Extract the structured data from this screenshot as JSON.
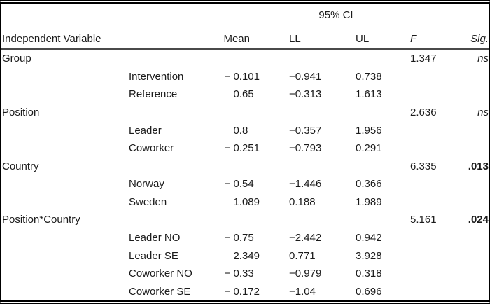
{
  "colors": {
    "text": "#1b1b1b",
    "border": "#000000",
    "ci_rule": "#666666",
    "header_rule": "#4a4a4a"
  },
  "table": {
    "ci_spanner": "95% CI",
    "headers": {
      "variable": "Independent Variable",
      "mean": "Mean",
      "ll": "LL",
      "ul": "UL",
      "f": "F",
      "sig": "Sig."
    },
    "rows": [
      {
        "type": "main",
        "label": "Group",
        "f": "1.347",
        "sig": "ns"
      },
      {
        "type": "sub",
        "label": "Intervention",
        "mean": "− 0.101",
        "ll": "−0.941",
        "ul": "0.738"
      },
      {
        "type": "sub",
        "label": "Reference",
        "mean": "0.65",
        "ll": "−0.313",
        "ul": "1.613"
      },
      {
        "type": "main",
        "label": "Position",
        "f": "2.636",
        "sig": "ns"
      },
      {
        "type": "sub",
        "label": "Leader",
        "mean": "0.8",
        "ll": "−0.357",
        "ul": "1.956"
      },
      {
        "type": "sub",
        "label": "Coworker",
        "mean": "− 0.251",
        "ll": "−0.793",
        "ul": "0.291"
      },
      {
        "type": "main",
        "label": "Country",
        "f": "6.335",
        "sig": ".013"
      },
      {
        "type": "sub",
        "label": "Norway",
        "mean": "− 0.54",
        "ll": "−1.446",
        "ul": "0.366"
      },
      {
        "type": "sub",
        "label": "Sweden",
        "mean": "1.089",
        "ll": "0.188",
        "ul": "1.989"
      },
      {
        "type": "main",
        "label": "Position*Country",
        "f": "5.161",
        "sig": ".024"
      },
      {
        "type": "sub",
        "label": "Leader NO",
        "mean": "− 0.75",
        "ll": "−2.442",
        "ul": "0.942"
      },
      {
        "type": "sub",
        "label": "Leader SE",
        "mean": "2.349",
        "ll": "0.771",
        "ul": "3.928"
      },
      {
        "type": "sub",
        "label": "Coworker NO",
        "mean": "− 0.33",
        "ll": "−0.979",
        "ul": "0.318"
      },
      {
        "type": "sub",
        "label": "Coworker SE",
        "mean": "− 0.172",
        "ll": "−1.04",
        "ul": "0.696"
      }
    ]
  }
}
